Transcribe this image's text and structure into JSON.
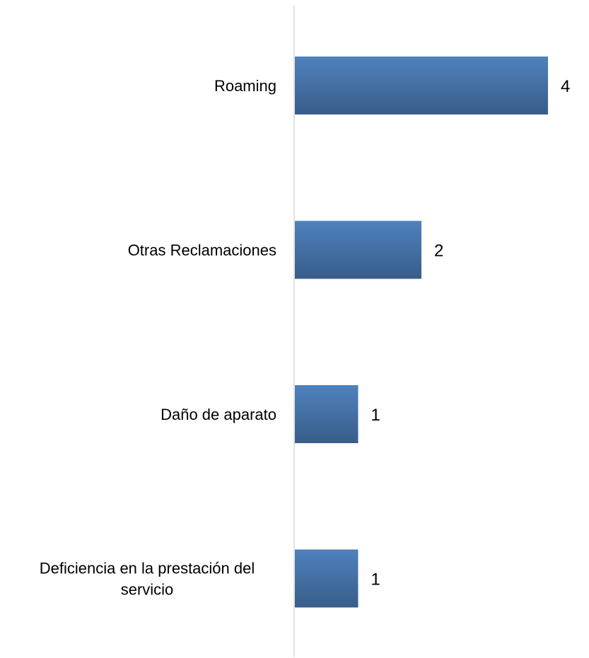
{
  "chart_data": {
    "type": "bar",
    "orientation": "horizontal",
    "categories": [
      "Roaming",
      "Otras Reclamaciones",
      "Daño de aparato",
      "Deficiencia en la prestación del servicio"
    ],
    "category_lines": [
      [
        "Roaming"
      ],
      [
        "Otras Reclamaciones"
      ],
      [
        "Daño de aparato"
      ],
      [
        "Deficiencia en la prestación del",
        "servicio"
      ]
    ],
    "values": [
      4,
      2,
      1,
      1
    ],
    "data_labels": [
      "4",
      "2",
      "1",
      "1"
    ],
    "title": "",
    "xlabel": "",
    "ylabel": "",
    "xlim": [
      0,
      4
    ],
    "grid": false,
    "legend": "none",
    "colors": {
      "bar_top": "#4F81BD",
      "bar_bottom": "#385D8A",
      "axis": "#D9D9D9"
    }
  }
}
